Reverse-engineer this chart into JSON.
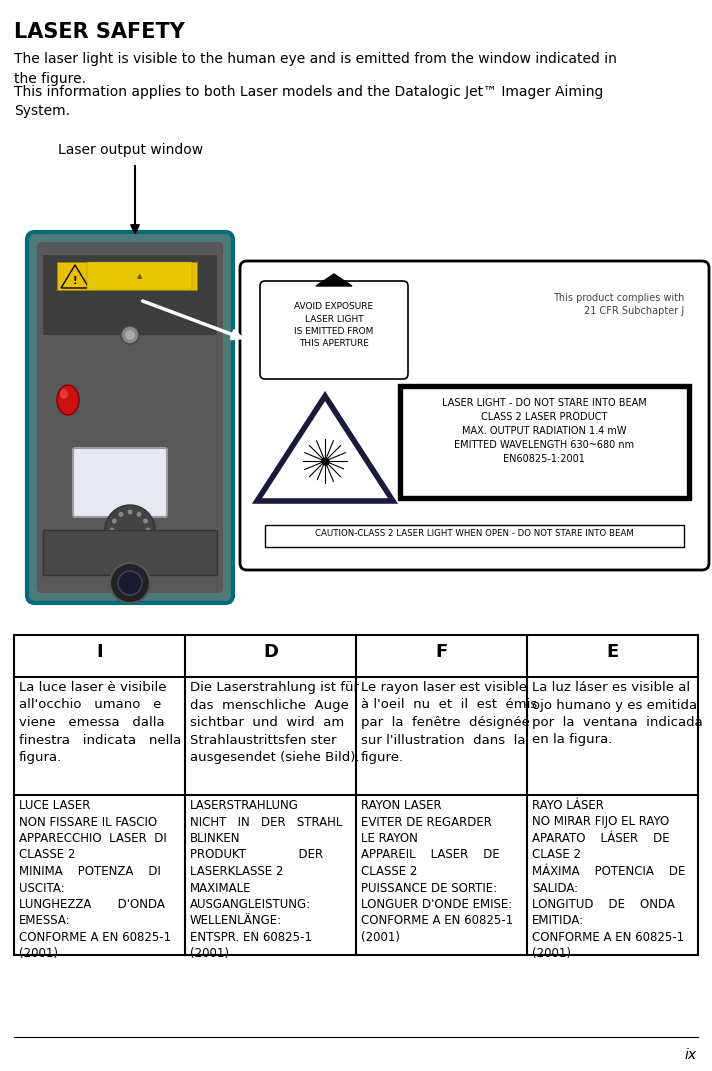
{
  "title": "LASER SAFETY",
  "intro_text_1": "The laser light is visible to the human eye and is emitted from the window indicated in\nthe figure.",
  "intro_text_2": "This information applies to both Laser models and the Datalogic Jet™ Imager Aiming\nSystem.",
  "laser_output_label": "Laser output window",
  "avoid_exposure_text": "AVOID EXPOSURE\nLASER LIGHT\nIS EMITTED FROM\nTHIS APERTURE",
  "complies_text": "This product complies with\n21 CFR Subchapter J",
  "laser_warning_text": "LASER LIGHT - DO NOT STARE INTO BEAM\nCLASS 2 LASER PRODUCT\nMAX. OUTPUT RADIATION 1.4 mW\nEMITTED WAVELENGTH 630~680 nm\nEN60825-1:2001",
  "caution_text": "CAUTION-CLASS 2 LASER LIGHT WHEN OPEN - DO NOT STARE INTO BEAM",
  "col_headers": [
    "I",
    "D",
    "F",
    "E"
  ],
  "row1_cells": [
    "La luce laser è visibile\nall'occhio   umano   e\nviene   emessa   dalla\nfinestra   indicata   nella\nfigura.",
    "Die Laserstrahlung ist für\ndas  menschliche  Auge\nsichtbar  und  wird  am\nStrahlaustrittsfen ster\nausgesendet (siehe Bild).",
    "Le rayon laser est visible\nà l'oeil  nu  et  il  est  émis\npar  la  fenêtre  désignée\nsur l'illustration  dans  la\nfigure.",
    "La luz láser es visible al\nojo humano y es emitida\npor  la  ventana  indicada\nen la figura."
  ],
  "row2_cells": [
    "LUCE LASER\nNON FISSARE IL FASCIO\nAPPARECCHIO  LASER  DI\nCLASSE 2\nMINIMA    POTENZA    DI\nUSCITA:\nLUNGHEZZA       D'ONDA\nEMESSA:\nCONFORME A EN 60825-1\n(2001)",
    "LASERSTRAHLUNG\nNICHT   IN   DER   STRAHL\nBLINKEN\nPRODUKT              DER\nLASERKLASSE 2\nMAXIMALE\nAUSGANGLEISTUNG:\nWELLENLÄNGE:\nENTSPR. EN 60825-1\n(2001)",
    "RAYON LASER\nEVITER DE REGARDER\nLE RAYON\nAPPAREIL    LASER    DE\nCLASSE 2\nPUISSANCE DE SORTIE:\nLONGUER D'ONDE EMISE:\nCONFORME A EN 60825-1\n(2001)",
    "RAYO LÁSER\nNO MIRAR FIJO EL RAYO\nAPARATO    LÁSER    DE\nCLASE 2\nMÁXIMA    POTENCIA    DE\nSALIDA:\nLONGITUD    DE    ONDA\nEMITIDA:\nCONFORME A EN 60825-1\n(2001)"
  ],
  "page_number": "ix",
  "bg_color": "#ffffff",
  "text_color": "#000000",
  "teal_color": "#007b8a",
  "device_body_color": "#555555",
  "device_dark_color": "#3a3a3a",
  "device_highlight_color": "#6a6a6a"
}
